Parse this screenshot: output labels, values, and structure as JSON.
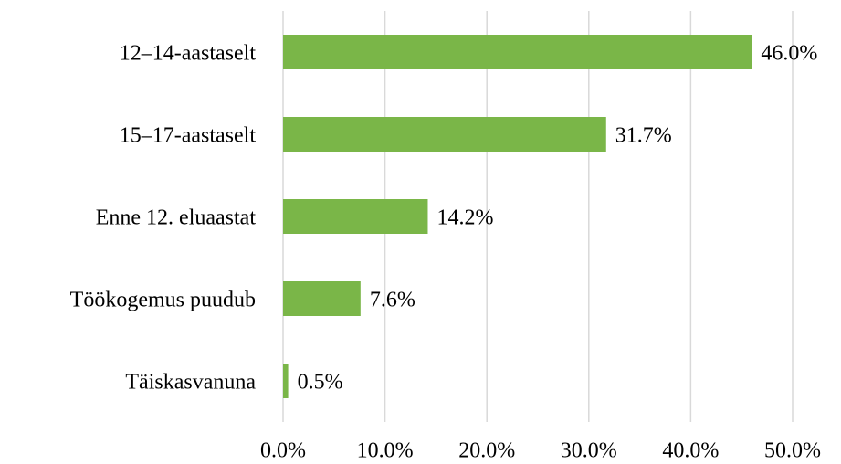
{
  "chart_data": {
    "type": "barh",
    "categories": [
      "12–14-aastaselt",
      "15–17-aastaselt",
      "Enne 12. eluaastat",
      "Töökogemus puudub",
      "Täiskasvanuna"
    ],
    "values": [
      46.0,
      31.7,
      14.2,
      7.6,
      0.5
    ],
    "value_labels": [
      "46.0%",
      "31.7%",
      "14.2%",
      "7.6%",
      "0.5%"
    ],
    "color": "#7ab648",
    "xlim": [
      0,
      50
    ],
    "xticks": [
      {
        "value": 0,
        "label": "0.0%"
      },
      {
        "value": 10,
        "label": "10.0%"
      },
      {
        "value": 20,
        "label": "20.0%"
      },
      {
        "value": 30,
        "label": "30.0%"
      },
      {
        "value": 40,
        "label": "40.0%"
      },
      {
        "value": 50,
        "label": "50.0%"
      }
    ],
    "grid": true
  }
}
